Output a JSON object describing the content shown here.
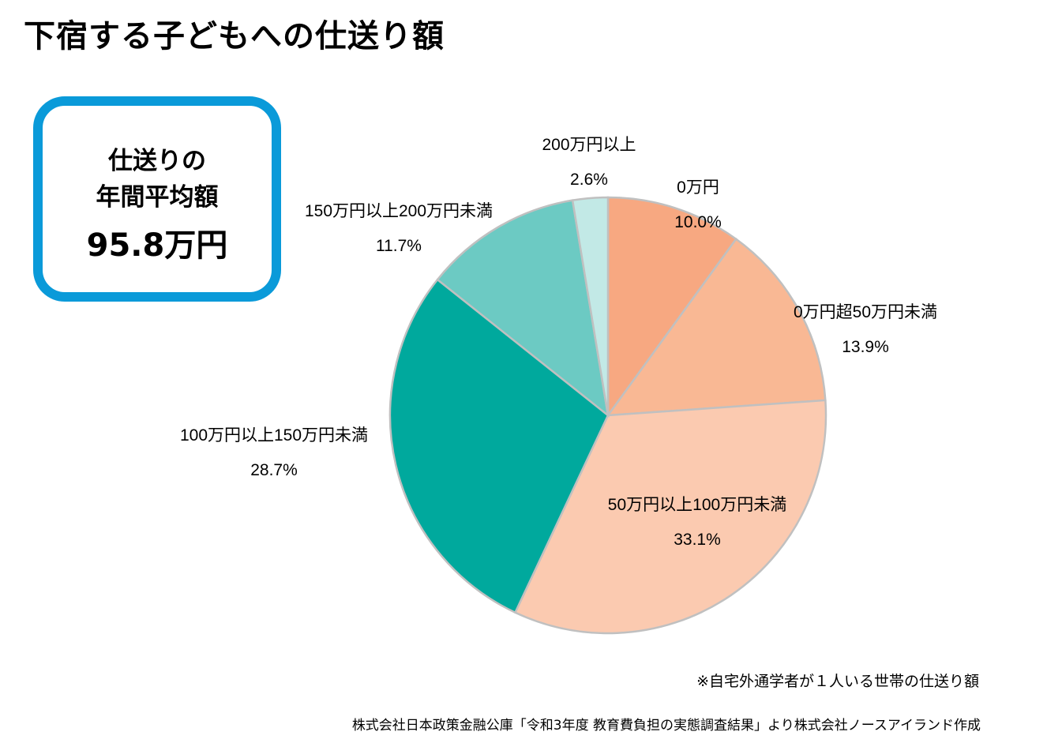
{
  "title": "下宿する子どもへの仕送り額",
  "average_box": {
    "line1": "仕送りの",
    "line2": "年間平均額",
    "value": "95.8万円",
    "border_color": "#0a9ad9"
  },
  "chart_data": {
    "type": "pie",
    "title": "下宿する子どもへの仕送り額",
    "start": "12 o'clock",
    "direction": "clockwise",
    "unit": "%",
    "slices": [
      {
        "label": "0万円",
        "value": 10.0,
        "value_label": "10.0%",
        "color": "#f7a881"
      },
      {
        "label": "0万円超50万円未満",
        "value": 13.9,
        "value_label": "13.9%",
        "color": "#f9b894"
      },
      {
        "label": "50万円以上100万円未満",
        "value": 33.1,
        "value_label": "33.1%",
        "color": "#fbcab0"
      },
      {
        "label": "100万円以上150万円未満",
        "value": 28.7,
        "value_label": "28.7%",
        "color": "#00a99d"
      },
      {
        "label": "150万円以上200万円未満",
        "value": 11.7,
        "value_label": "11.7%",
        "color": "#6ccac3"
      },
      {
        "label": "200万円以上",
        "value": 2.6,
        "value_label": "2.6%",
        "color": "#c2e9e6"
      }
    ],
    "edge_color": "#c0c0c0"
  },
  "note": "※自宅外通学者が１人いる世帯の仕送り額",
  "source": "株式会社日本政策金融公庫「令和3年度 教育費負担の実態調査結果」より株式会社ノースアイランド作成"
}
